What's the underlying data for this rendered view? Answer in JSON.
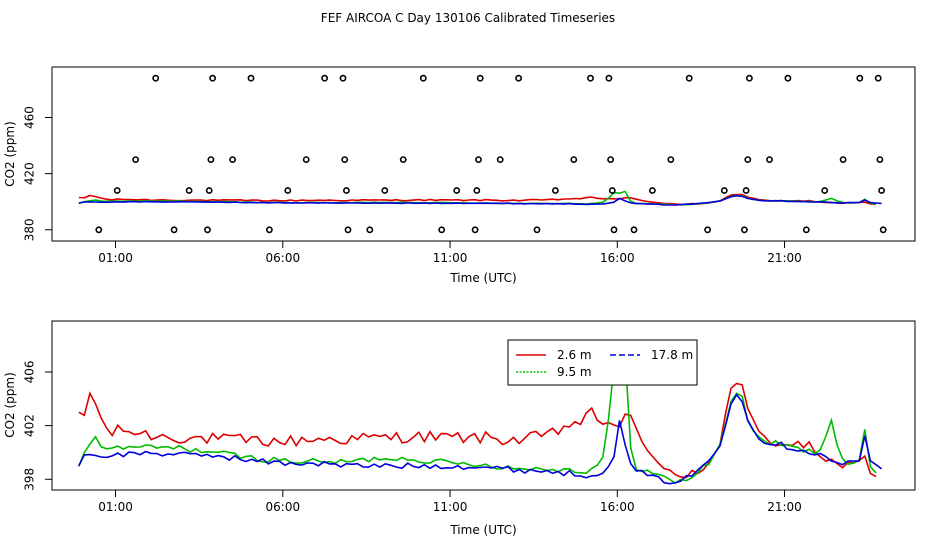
{
  "title": "FEF AIRCOA C  Day 130106  Calibrated Timeseries",
  "colors": {
    "red": "#dd0000",
    "green": "#00bb00",
    "blue": "#0000dd"
  },
  "chart_data": [
    {
      "type": "line+scatter",
      "panel": "top",
      "xlabel": "Time (UTC)",
      "ylabel": "CO2 (ppm)",
      "xticks": [
        {
          "v": 1,
          "label": "01:00"
        },
        {
          "v": 6,
          "label": "06:00"
        },
        {
          "v": 11,
          "label": "11:00"
        },
        {
          "v": 16,
          "label": "16:00"
        },
        {
          "v": 21,
          "label": "21:00"
        }
      ],
      "yticks": [
        {
          "v": 380,
          "label": "380"
        },
        {
          "v": 420,
          "label": "420"
        },
        {
          "v": 460,
          "label": "460"
        }
      ],
      "xlim": [
        -0.9,
        24.9
      ],
      "ylim": [
        372,
        496
      ],
      "calibration_points": [
        [
          0.5,
          380
        ],
        [
          1.05,
          408
        ],
        [
          1.6,
          430
        ],
        [
          2.2,
          488
        ],
        [
          2.75,
          380
        ],
        [
          3.2,
          408
        ],
        [
          3.75,
          380
        ],
        [
          3.8,
          408
        ],
        [
          3.85,
          430
        ],
        [
          3.9,
          488
        ],
        [
          4.5,
          430
        ],
        [
          5.05,
          488
        ],
        [
          5.6,
          380
        ],
        [
          6.15,
          408
        ],
        [
          6.7,
          430
        ],
        [
          7.25,
          488
        ],
        [
          7.8,
          488
        ],
        [
          7.85,
          430
        ],
        [
          7.9,
          408
        ],
        [
          7.95,
          380
        ],
        [
          8.6,
          380
        ],
        [
          9.05,
          408
        ],
        [
          9.6,
          430
        ],
        [
          10.2,
          488
        ],
        [
          10.75,
          380
        ],
        [
          11.2,
          408
        ],
        [
          11.75,
          380
        ],
        [
          11.8,
          408
        ],
        [
          11.85,
          430
        ],
        [
          11.9,
          488
        ],
        [
          12.5,
          430
        ],
        [
          13.05,
          488
        ],
        [
          13.6,
          380
        ],
        [
          14.15,
          408
        ],
        [
          14.7,
          430
        ],
        [
          15.2,
          488
        ],
        [
          15.75,
          488
        ],
        [
          15.8,
          430
        ],
        [
          15.85,
          408
        ],
        [
          15.9,
          380
        ],
        [
          16.5,
          380
        ],
        [
          17.05,
          408
        ],
        [
          17.6,
          430
        ],
        [
          18.15,
          488
        ],
        [
          18.7,
          380
        ],
        [
          19.2,
          408
        ],
        [
          19.8,
          380
        ],
        [
          19.85,
          408
        ],
        [
          19.9,
          430
        ],
        [
          19.95,
          488
        ],
        [
          20.55,
          430
        ],
        [
          21.1,
          488
        ],
        [
          21.65,
          380
        ],
        [
          22.2,
          408
        ],
        [
          22.75,
          430
        ],
        [
          23.25,
          488
        ],
        [
          23.8,
          488
        ],
        [
          23.85,
          430
        ],
        [
          23.9,
          408
        ],
        [
          23.95,
          380
        ]
      ]
    },
    {
      "type": "line",
      "panel": "bottom",
      "xlabel": "Time (UTC)",
      "ylabel": "CO2 (ppm)",
      "xticks": [
        {
          "v": 1,
          "label": "01:00"
        },
        {
          "v": 6,
          "label": "06:00"
        },
        {
          "v": 11,
          "label": "11:00"
        },
        {
          "v": 16,
          "label": "16:00"
        },
        {
          "v": 21,
          "label": "21:00"
        }
      ],
      "yticks": [
        {
          "v": 398,
          "label": "398"
        },
        {
          "v": 402,
          "label": "402"
        },
        {
          "v": 406,
          "label": "406"
        }
      ],
      "xlim": [
        -0.9,
        24.9
      ],
      "ylim": [
        397.2,
        409.8
      ],
      "legend": [
        {
          "label": "2.6 m",
          "color": "#dd0000",
          "style": "solid"
        },
        {
          "label": "9.5 m",
          "color": "#00bb00",
          "style": "dotted"
        },
        {
          "label": "17.8 m",
          "color": "#0000dd",
          "style": "dashed"
        }
      ],
      "series": [
        {
          "name": "2.6 m",
          "color": "#dd0000",
          "keys": [
            [
              -0.1,
              402.6
            ],
            [
              0.1,
              402.8
            ],
            [
              0.2,
              404.4
            ],
            [
              0.35,
              404.2
            ],
            [
              0.5,
              402.8
            ],
            [
              0.8,
              401.4
            ],
            [
              1.2,
              401.7
            ],
            [
              2.0,
              401.3
            ],
            [
              3.0,
              401.1
            ],
            [
              4.0,
              401.0
            ],
            [
              5.0,
              400.9
            ],
            [
              6.0,
              400.8
            ],
            [
              7.0,
              401.0
            ],
            [
              8.0,
              401.0
            ],
            [
              9.0,
              401.1
            ],
            [
              10.0,
              401.2
            ],
            [
              11.0,
              401.1
            ],
            [
              12.0,
              401.1
            ],
            [
              13.0,
              400.9
            ],
            [
              14.0,
              401.3
            ],
            [
              14.5,
              402.0
            ],
            [
              15.0,
              402.4
            ],
            [
              15.3,
              403.0
            ],
            [
              15.5,
              402.1
            ],
            [
              15.7,
              402.5
            ],
            [
              16.0,
              402.0
            ],
            [
              16.15,
              401.0
            ],
            [
              16.25,
              402.8
            ],
            [
              16.35,
              402.9
            ],
            [
              16.6,
              401.5
            ],
            [
              16.9,
              400.5
            ],
            [
              17.3,
              398.8
            ],
            [
              17.7,
              398.1
            ],
            [
              18.0,
              398.2
            ],
            [
              18.3,
              399.0
            ],
            [
              18.5,
              398.4
            ],
            [
              18.8,
              399.7
            ],
            [
              19.1,
              401.0
            ],
            [
              19.3,
              403.6
            ],
            [
              19.5,
              405.6
            ],
            [
              19.7,
              405.0
            ],
            [
              19.9,
              403.0
            ],
            [
              20.2,
              401.4
            ],
            [
              20.5,
              400.9
            ],
            [
              21.0,
              400.7
            ],
            [
              21.5,
              400.5
            ],
            [
              22.0,
              400.2
            ],
            [
              22.3,
              399.2
            ],
            [
              22.6,
              398.8
            ],
            [
              22.9,
              398.9
            ],
            [
              23.1,
              399.1
            ],
            [
              23.3,
              400.2
            ],
            [
              23.5,
              398.9
            ],
            [
              23.7,
              398.0
            ],
            [
              23.85,
              397.7
            ]
          ],
          "noise": 0.45
        },
        {
          "name": "9.5 m",
          "color": "#00bb00",
          "keys": [
            [
              -0.1,
              399.1
            ],
            [
              0.2,
              400.7
            ],
            [
              0.4,
              401.0
            ],
            [
              0.6,
              400.4
            ],
            [
              1.0,
              400.3
            ],
            [
              2.0,
              400.4
            ],
            [
              3.0,
              400.3
            ],
            [
              4.0,
              400.0
            ],
            [
              5.0,
              399.6
            ],
            [
              6.0,
              399.4
            ],
            [
              7.0,
              399.3
            ],
            [
              8.0,
              399.3
            ],
            [
              9.0,
              399.6
            ],
            [
              10.0,
              399.5
            ],
            [
              11.0,
              399.2
            ],
            [
              12.0,
              399.1
            ],
            [
              13.0,
              398.8
            ],
            [
              14.0,
              398.8
            ],
            [
              14.5,
              398.7
            ],
            [
              15.0,
              398.6
            ],
            [
              15.3,
              398.8
            ],
            [
              15.6,
              399.8
            ],
            [
              15.8,
              403.5
            ],
            [
              16.0,
              409.3
            ],
            [
              16.15,
              402.0
            ],
            [
              16.25,
              408.2
            ],
            [
              16.35,
              401.0
            ],
            [
              16.5,
              399.0
            ],
            [
              16.9,
              398.6
            ],
            [
              17.3,
              398.2
            ],
            [
              17.7,
              397.8
            ],
            [
              18.1,
              398.0
            ],
            [
              18.5,
              398.7
            ],
            [
              18.8,
              399.4
            ],
            [
              19.1,
              400.7
            ],
            [
              19.3,
              403.0
            ],
            [
              19.5,
              404.6
            ],
            [
              19.7,
              404.3
            ],
            [
              19.9,
              402.5
            ],
            [
              20.2,
              401.0
            ],
            [
              20.5,
              400.8
            ],
            [
              21.0,
              400.5
            ],
            [
              21.5,
              400.2
            ],
            [
              21.9,
              400.0
            ],
            [
              22.1,
              400.5
            ],
            [
              22.3,
              401.8
            ],
            [
              22.45,
              402.7
            ],
            [
              22.6,
              400.0
            ],
            [
              22.9,
              399.1
            ],
            [
              23.2,
              399.0
            ],
            [
              23.4,
              401.5
            ],
            [
              23.6,
              398.6
            ],
            [
              23.85,
              398.4
            ]
          ],
          "noise": 0.22
        },
        {
          "name": "17.8 m",
          "color": "#0000dd",
          "keys": [
            [
              -0.1,
              399.2
            ],
            [
              0.2,
              400.0
            ],
            [
              0.5,
              399.7
            ],
            [
              1.0,
              399.8
            ],
            [
              2.0,
              400.0
            ],
            [
              3.0,
              399.8
            ],
            [
              4.0,
              399.8
            ],
            [
              5.0,
              399.4
            ],
            [
              6.0,
              399.2
            ],
            [
              7.0,
              399.2
            ],
            [
              8.0,
              399.0
            ],
            [
              9.0,
              399.0
            ],
            [
              10.0,
              399.0
            ],
            [
              11.0,
              399.0
            ],
            [
              12.0,
              398.9
            ],
            [
              13.0,
              398.7
            ],
            [
              14.0,
              398.6
            ],
            [
              15.0,
              398.3
            ],
            [
              15.5,
              398.5
            ],
            [
              15.9,
              399.5
            ],
            [
              16.05,
              402.8
            ],
            [
              16.15,
              399.8
            ],
            [
              16.3,
              400.9
            ],
            [
              16.45,
              398.6
            ],
            [
              16.8,
              398.4
            ],
            [
              17.2,
              398.0
            ],
            [
              17.7,
              397.8
            ],
            [
              18.1,
              398.1
            ],
            [
              18.5,
              398.8
            ],
            [
              18.8,
              399.6
            ],
            [
              19.1,
              400.6
            ],
            [
              19.3,
              403.0
            ],
            [
              19.5,
              404.6
            ],
            [
              19.7,
              404.2
            ],
            [
              19.9,
              402.6
            ],
            [
              20.2,
              401.0
            ],
            [
              20.5,
              400.8
            ],
            [
              21.0,
              400.5
            ],
            [
              21.5,
              400.2
            ],
            [
              22.0,
              399.9
            ],
            [
              22.3,
              399.5
            ],
            [
              22.6,
              399.2
            ],
            [
              23.0,
              399.2
            ],
            [
              23.2,
              399.1
            ],
            [
              23.4,
              401.2
            ],
            [
              23.6,
              399.0
            ],
            [
              23.85,
              398.9
            ],
            [
              24.0,
              398.7
            ]
          ],
          "noise": 0.22
        }
      ]
    }
  ]
}
